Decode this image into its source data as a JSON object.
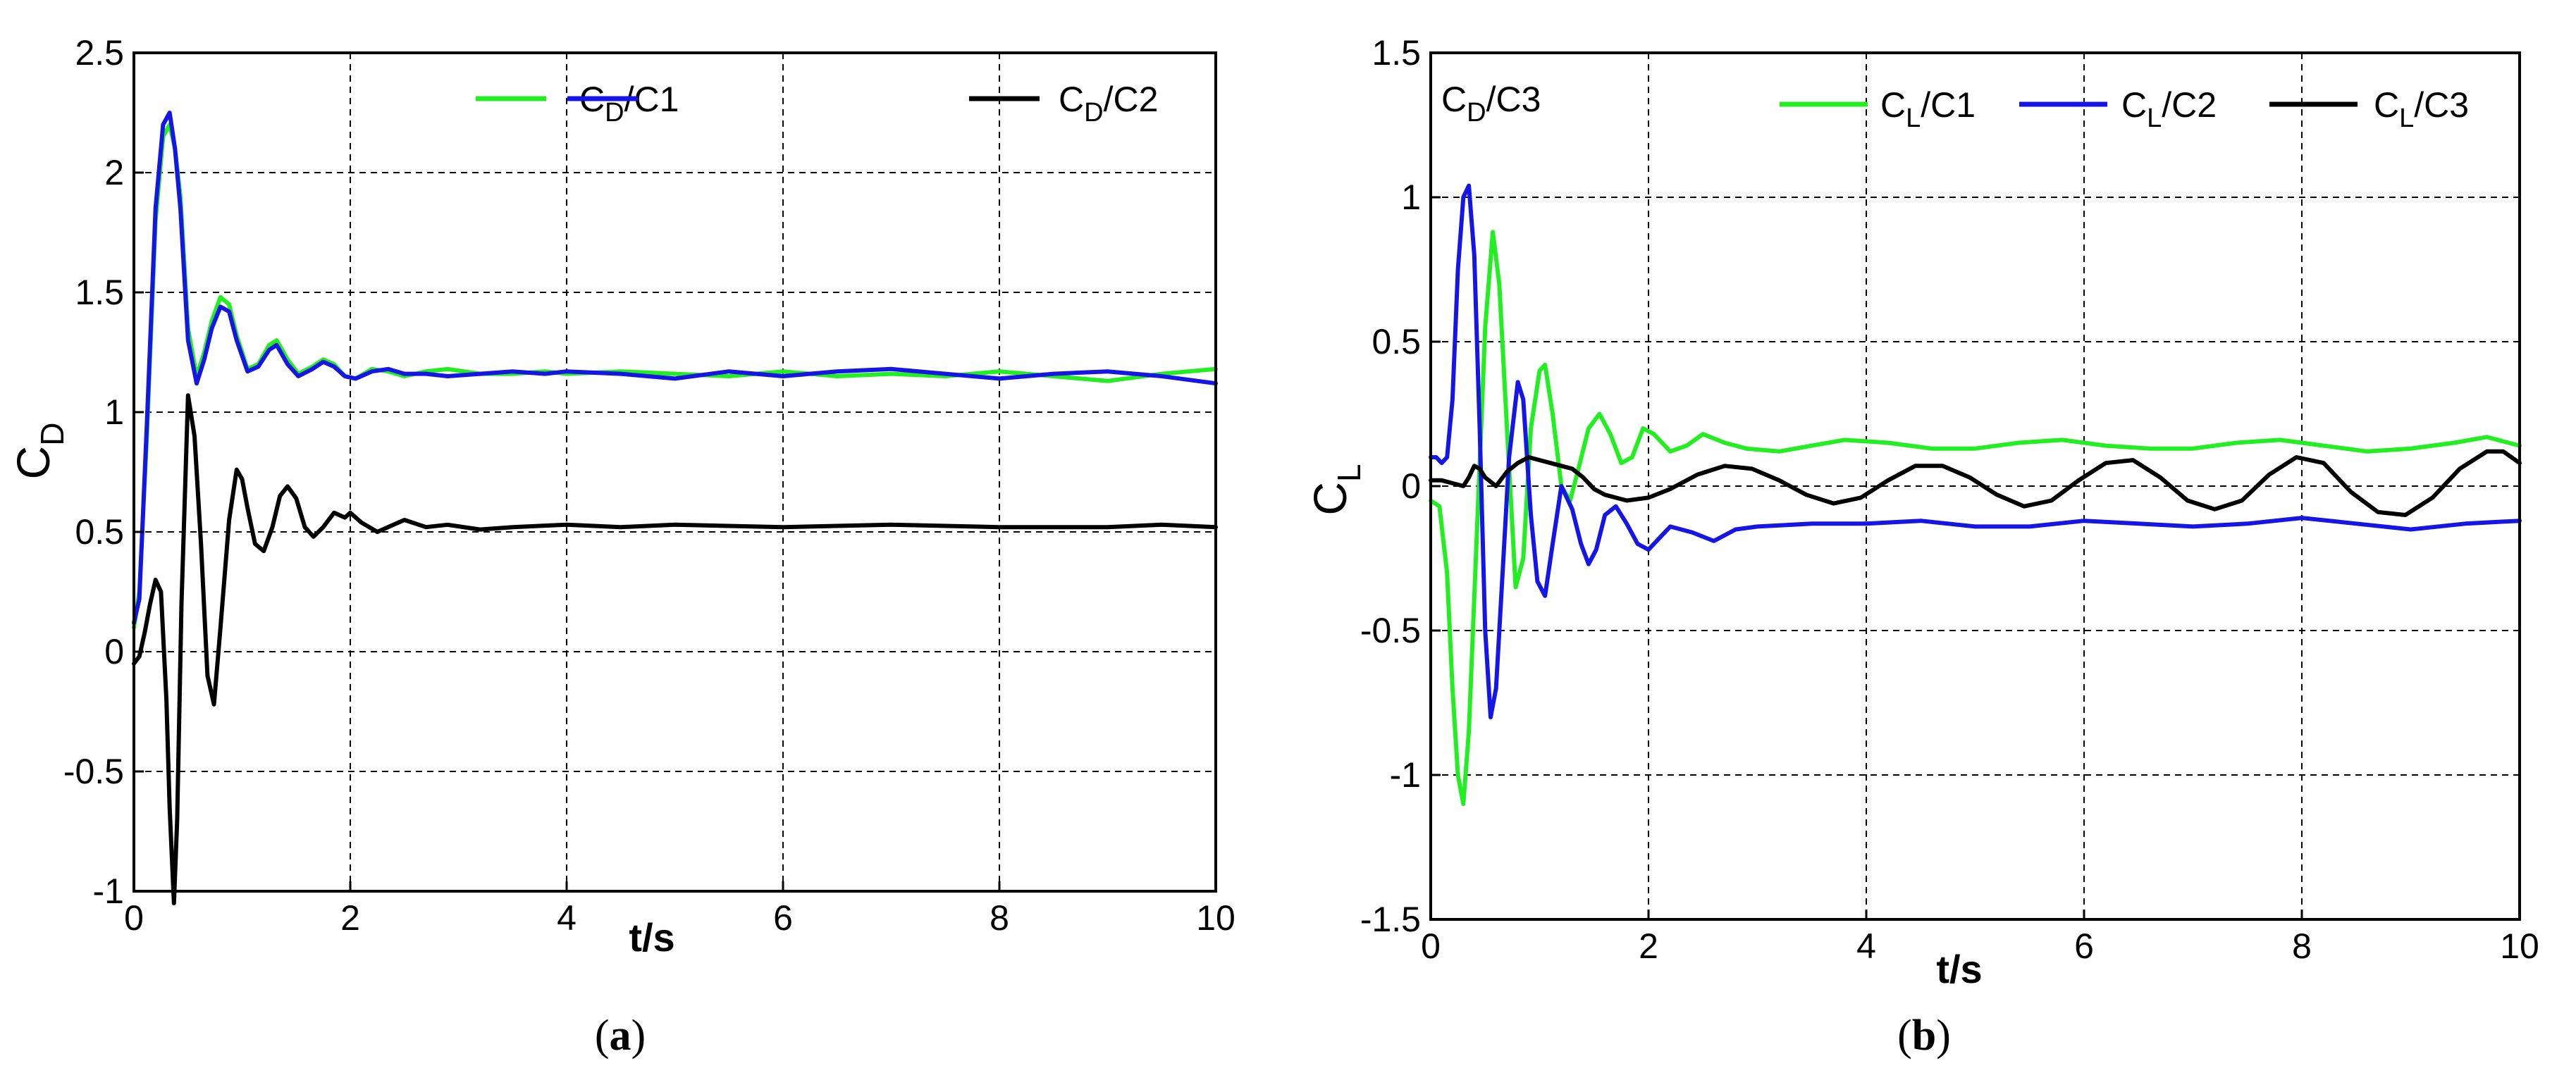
{
  "chart_data": [
    {
      "type": "line",
      "panel_label": "a",
      "xlabel": "t/s",
      "ylabel": {
        "main": "C",
        "sub": "D"
      },
      "xlim": [
        0,
        10
      ],
      "ylim": [
        -1,
        2.5
      ],
      "xticks": [
        "0",
        "2",
        "4",
        "6",
        "8",
        "10"
      ],
      "yticks": [
        "-1",
        "-0.5",
        "0",
        "0.5",
        "1",
        "1.5",
        "2",
        "2.5"
      ],
      "grid": true,
      "legend_position": "top-right",
      "series": [
        {
          "name": "C_D/C1",
          "name_main": "C",
          "name_sub": "D",
          "name_tail": "/C1",
          "color": "#22ee22",
          "x": [
            0,
            0.05,
            0.12,
            0.2,
            0.27,
            0.33,
            0.38,
            0.43,
            0.5,
            0.58,
            0.65,
            0.72,
            0.8,
            0.88,
            0.95,
            1.05,
            1.15,
            1.25,
            1.32,
            1.42,
            1.52,
            1.65,
            1.75,
            1.85,
            1.95,
            2.05,
            2.2,
            2.35,
            2.5,
            2.7,
            2.9,
            3.2,
            3.5,
            3.8,
            4.0,
            4.5,
            5.0,
            5.5,
            6.0,
            6.5,
            7.0,
            7.5,
            8.0,
            8.5,
            9.0,
            9.5,
            10.0
          ],
          "y": [
            0.1,
            0.25,
            0.9,
            1.8,
            2.15,
            2.2,
            2.1,
            1.9,
            1.35,
            1.15,
            1.25,
            1.38,
            1.48,
            1.45,
            1.32,
            1.18,
            1.2,
            1.28,
            1.3,
            1.22,
            1.16,
            1.19,
            1.22,
            1.2,
            1.15,
            1.14,
            1.18,
            1.17,
            1.15,
            1.17,
            1.18,
            1.16,
            1.16,
            1.17,
            1.16,
            1.17,
            1.16,
            1.15,
            1.17,
            1.15,
            1.16,
            1.15,
            1.17,
            1.15,
            1.13,
            1.16,
            1.18
          ]
        },
        {
          "name": "C_D/C2",
          "name_main": "C",
          "name_sub": "D",
          "name_tail": "/C2",
          "color": "#1515e6",
          "x": [
            0,
            0.05,
            0.12,
            0.2,
            0.27,
            0.33,
            0.38,
            0.43,
            0.5,
            0.58,
            0.65,
            0.72,
            0.8,
            0.88,
            0.95,
            1.05,
            1.15,
            1.25,
            1.32,
            1.42,
            1.52,
            1.65,
            1.75,
            1.85,
            1.95,
            2.05,
            2.2,
            2.35,
            2.5,
            2.7,
            2.9,
            3.2,
            3.5,
            3.8,
            4.0,
            4.5,
            5.0,
            5.5,
            6.0,
            6.5,
            7.0,
            7.5,
            8.0,
            8.5,
            9.0,
            9.5,
            10.0
          ],
          "y": [
            0.12,
            0.22,
            0.95,
            1.85,
            2.2,
            2.25,
            2.1,
            1.85,
            1.3,
            1.12,
            1.22,
            1.35,
            1.44,
            1.42,
            1.3,
            1.17,
            1.19,
            1.26,
            1.28,
            1.2,
            1.15,
            1.18,
            1.21,
            1.19,
            1.15,
            1.14,
            1.17,
            1.18,
            1.16,
            1.16,
            1.15,
            1.16,
            1.17,
            1.16,
            1.17,
            1.16,
            1.14,
            1.17,
            1.15,
            1.17,
            1.18,
            1.16,
            1.14,
            1.16,
            1.17,
            1.15,
            1.12
          ]
        },
        {
          "name": "C_D/C3",
          "name_main": "C",
          "name_sub": "D",
          "name_tail": "/C3",
          "color": "#000000",
          "x": [
            0,
            0.05,
            0.1,
            0.15,
            0.2,
            0.25,
            0.3,
            0.33,
            0.37,
            0.4,
            0.44,
            0.5,
            0.56,
            0.62,
            0.68,
            0.74,
            0.8,
            0.88,
            0.95,
            1.0,
            1.05,
            1.12,
            1.2,
            1.28,
            1.35,
            1.42,
            1.5,
            1.58,
            1.66,
            1.75,
            1.85,
            1.95,
            2.0,
            2.1,
            2.25,
            2.4,
            2.5,
            2.7,
            2.9,
            3.2,
            3.5,
            4.0,
            4.5,
            5.0,
            6.0,
            7.0,
            8.0,
            9.0,
            9.5,
            10.0
          ],
          "y": [
            -0.05,
            -0.02,
            0.08,
            0.2,
            0.3,
            0.25,
            -0.2,
            -0.65,
            -1.05,
            -0.7,
            0.2,
            1.07,
            0.9,
            0.45,
            -0.1,
            -0.22,
            0.1,
            0.55,
            0.76,
            0.72,
            0.6,
            0.45,
            0.42,
            0.52,
            0.65,
            0.69,
            0.64,
            0.52,
            0.48,
            0.52,
            0.58,
            0.56,
            0.58,
            0.54,
            0.5,
            0.53,
            0.55,
            0.52,
            0.53,
            0.51,
            0.52,
            0.53,
            0.52,
            0.53,
            0.52,
            0.53,
            0.52,
            0.52,
            0.53,
            0.52
          ]
        }
      ]
    },
    {
      "type": "line",
      "panel_label": "b",
      "xlabel": "t/s",
      "ylabel": {
        "main": "C",
        "sub": "L"
      },
      "xlim": [
        0,
        10
      ],
      "ylim": [
        -1.5,
        1.5
      ],
      "xticks": [
        "0",
        "2",
        "4",
        "6",
        "8",
        "10"
      ],
      "yticks": [
        "-1.5",
        "-1",
        "-0.5",
        "0",
        "0.5",
        "1",
        "1.5"
      ],
      "grid": true,
      "legend_position": "top-right",
      "series": [
        {
          "name": "C_L/C1",
          "name_main": "C",
          "name_sub": "L",
          "name_tail": "/C1",
          "color": "#22ee22",
          "x": [
            0,
            0.08,
            0.15,
            0.2,
            0.25,
            0.3,
            0.35,
            0.42,
            0.5,
            0.57,
            0.63,
            0.7,
            0.78,
            0.85,
            0.92,
            1.0,
            1.05,
            1.12,
            1.2,
            1.28,
            1.35,
            1.45,
            1.55,
            1.65,
            1.75,
            1.85,
            1.95,
            2.05,
            2.2,
            2.35,
            2.5,
            2.7,
            2.9,
            3.2,
            3.5,
            3.8,
            4.2,
            4.6,
            5.0,
            5.4,
            5.8,
            6.2,
            6.6,
            7.0,
            7.4,
            7.8,
            8.2,
            8.6,
            9.0,
            9.4,
            9.7,
            10.0
          ],
          "y": [
            -0.05,
            -0.07,
            -0.3,
            -0.7,
            -1.0,
            -1.1,
            -0.85,
            -0.2,
            0.55,
            0.88,
            0.7,
            0.2,
            -0.35,
            -0.25,
            0.2,
            0.4,
            0.42,
            0.25,
            0.0,
            -0.05,
            0.05,
            0.2,
            0.25,
            0.18,
            0.08,
            0.1,
            0.2,
            0.18,
            0.12,
            0.14,
            0.18,
            0.15,
            0.13,
            0.12,
            0.14,
            0.16,
            0.15,
            0.13,
            0.13,
            0.15,
            0.16,
            0.14,
            0.13,
            0.13,
            0.15,
            0.16,
            0.14,
            0.12,
            0.13,
            0.15,
            0.17,
            0.14
          ]
        },
        {
          "name": "C_L/C2",
          "name_main": "C",
          "name_sub": "L",
          "name_tail": "/C2",
          "color": "#1515e6",
          "x": [
            0,
            0.05,
            0.1,
            0.15,
            0.2,
            0.25,
            0.3,
            0.35,
            0.4,
            0.45,
            0.5,
            0.55,
            0.6,
            0.66,
            0.72,
            0.8,
            0.85,
            0.92,
            0.98,
            1.05,
            1.12,
            1.2,
            1.3,
            1.38,
            1.45,
            1.52,
            1.6,
            1.7,
            1.8,
            1.9,
            2.0,
            2.1,
            2.2,
            2.4,
            2.6,
            2.8,
            3.0,
            3.5,
            4.0,
            4.5,
            5.0,
            5.5,
            6.0,
            6.5,
            7.0,
            7.5,
            8.0,
            8.5,
            9.0,
            9.5,
            10.0
          ],
          "y": [
            0.1,
            0.1,
            0.08,
            0.1,
            0.3,
            0.75,
            1.0,
            1.04,
            0.8,
            0.2,
            -0.5,
            -0.8,
            -0.7,
            -0.3,
            0.1,
            0.36,
            0.3,
            -0.1,
            -0.33,
            -0.38,
            -0.2,
            0.0,
            -0.08,
            -0.2,
            -0.27,
            -0.22,
            -0.1,
            -0.07,
            -0.13,
            -0.2,
            -0.22,
            -0.18,
            -0.14,
            -0.16,
            -0.19,
            -0.15,
            -0.14,
            -0.13,
            -0.13,
            -0.12,
            -0.14,
            -0.14,
            -0.12,
            -0.13,
            -0.14,
            -0.13,
            -0.11,
            -0.13,
            -0.15,
            -0.13,
            -0.12
          ]
        },
        {
          "name": "C_L/C3",
          "name_main": "C",
          "name_sub": "L",
          "name_tail": "/C3",
          "color": "#000000",
          "x": [
            0,
            0.1,
            0.2,
            0.3,
            0.35,
            0.4,
            0.45,
            0.5,
            0.6,
            0.7,
            0.8,
            0.9,
            1.0,
            1.1,
            1.2,
            1.3,
            1.4,
            1.5,
            1.6,
            1.8,
            2.0,
            2.2,
            2.45,
            2.7,
            2.95,
            3.2,
            3.45,
            3.7,
            3.95,
            4.2,
            4.45,
            4.7,
            4.95,
            5.2,
            5.45,
            5.7,
            5.95,
            6.2,
            6.45,
            6.7,
            6.95,
            7.2,
            7.45,
            7.7,
            7.95,
            8.2,
            8.45,
            8.7,
            8.95,
            9.2,
            9.45,
            9.7,
            9.85,
            10.0
          ],
          "y": [
            0.02,
            0.02,
            0.01,
            0.0,
            0.03,
            0.07,
            0.06,
            0.03,
            0.0,
            0.05,
            0.08,
            0.1,
            0.09,
            0.08,
            0.07,
            0.06,
            0.03,
            -0.01,
            -0.03,
            -0.05,
            -0.04,
            -0.01,
            0.04,
            0.07,
            0.06,
            0.02,
            -0.03,
            -0.06,
            -0.04,
            0.02,
            0.07,
            0.07,
            0.03,
            -0.03,
            -0.07,
            -0.05,
            0.02,
            0.08,
            0.09,
            0.03,
            -0.05,
            -0.08,
            -0.05,
            0.04,
            0.1,
            0.08,
            -0.02,
            -0.09,
            -0.1,
            -0.04,
            0.06,
            0.12,
            0.12,
            0.08
          ]
        }
      ]
    }
  ]
}
